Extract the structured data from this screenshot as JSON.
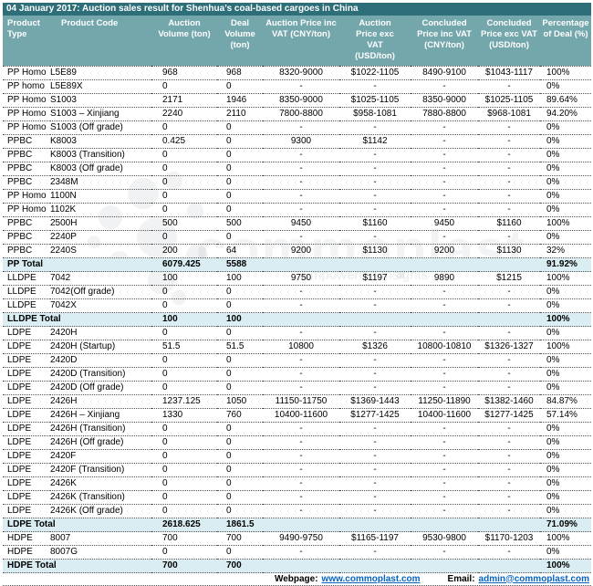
{
  "title": "04 January 2017: Auction sales result for Shenhua’s coal-based cargoes in China",
  "colors": {
    "title_bar": "#2e6e79",
    "header_row": "#74a7ac",
    "total_row_highlight": "#d9edf2",
    "hyperlink": "#0563c1"
  },
  "columns": [
    "Product Type",
    "Product Code",
    "Auction Volume (ton)",
    "Deal Volume (ton)",
    "Auction Price inc VAT (CNY/ton)",
    "Auction Price exc VAT (USD/ton)",
    "Concluded Price inc VAT (CNY/ton)",
    "Concluded Price exc VAT (USD/ton)",
    "Percentage of Deal (%)"
  ],
  "rows": [
    {
      "kind": "data",
      "type": "PP Homo",
      "code": "L5E89",
      "av": "968",
      "dv": "968",
      "apci": "8320-9000",
      "apce": "$1022-1105",
      "cpci": "8490-9100",
      "cpce": "$1043-1117",
      "pct": "100%"
    },
    {
      "kind": "data",
      "type": "PP homo",
      "code": "L5E89X",
      "av": "0",
      "dv": "0",
      "apci": "-",
      "apce": "-",
      "cpci": "-",
      "cpce": "-",
      "pct": "0%"
    },
    {
      "kind": "data",
      "type": "PP Homo",
      "code": "S1003",
      "av": "2171",
      "dv": "1946",
      "apci": "8350-9000",
      "apce": "$1025-1105",
      "cpci": "8350-9000",
      "cpce": "$1025-1105",
      "pct": "89.64%"
    },
    {
      "kind": "data",
      "type": "PP Homo",
      "code": "S1003 – Xinjiang",
      "av": "2240",
      "dv": "2110",
      "apci": "7800-8800",
      "apce": "$958-1081",
      "cpci": "7880-8800",
      "cpce": "$968-1081",
      "pct": "94.20%"
    },
    {
      "kind": "data",
      "type": "PP Homo",
      "code": "S1003 (Off grade)",
      "av": "0",
      "dv": "0",
      "apci": "-",
      "apce": "-",
      "cpci": "-",
      "cpce": "-",
      "pct": "0%"
    },
    {
      "kind": "data",
      "type": "PPBC",
      "code": "K8003",
      "av": "0.425",
      "dv": "0",
      "apci": "9300",
      "apce": "$1142",
      "cpci": "-",
      "cpce": "-",
      "pct": "0%"
    },
    {
      "kind": "data",
      "type": "PPBC",
      "code": "K8003 (Transition)",
      "av": "0",
      "dv": "0",
      "apci": "-",
      "apce": "-",
      "cpci": "-",
      "cpce": "-",
      "pct": "0%"
    },
    {
      "kind": "data",
      "type": "PPBC",
      "code": "K8003 (Off grade)",
      "av": "0",
      "dv": "0",
      "apci": "-",
      "apce": "-",
      "cpci": "-",
      "cpce": "-",
      "pct": "0%"
    },
    {
      "kind": "data",
      "type": "PPBC",
      "code": "2348M",
      "av": "0",
      "dv": "0",
      "apci": "-",
      "apce": "-",
      "cpci": "-",
      "cpce": "-",
      "pct": "0%"
    },
    {
      "kind": "data",
      "type": "PP Homo",
      "code": "1100N",
      "av": "0",
      "dv": "0",
      "apci": "-",
      "apce": "-",
      "cpci": "-",
      "cpce": "-",
      "pct": "0%"
    },
    {
      "kind": "data",
      "type": "PP Homo",
      "code": "1102K",
      "av": "0",
      "dv": "0",
      "apci": "-",
      "apce": "-",
      "cpci": "-",
      "cpce": "-",
      "pct": "0%"
    },
    {
      "kind": "data",
      "type": "PPBC",
      "code": "2500H",
      "av": "500",
      "dv": "500",
      "apci": "9450",
      "apce": "$1160",
      "cpci": "9450",
      "cpce": "$1160",
      "pct": "100%"
    },
    {
      "kind": "data",
      "type": "PPBC",
      "code": "2240P",
      "av": "0",
      "dv": "0",
      "apci": "-",
      "apce": "-",
      "cpci": "-",
      "cpce": "-",
      "pct": "0%"
    },
    {
      "kind": "data",
      "type": "PPBC",
      "code": "2240S",
      "av": "200",
      "dv": "64",
      "apci": "9200",
      "apce": "$1130",
      "cpci": "9200",
      "cpce": "$1130",
      "pct": "32%"
    },
    {
      "kind": "total",
      "type": "PP Total",
      "code": "",
      "av": "6079.425",
      "dv": "5588",
      "apci": "",
      "apce": "",
      "cpci": "",
      "cpce": "",
      "pct": "91.92%"
    },
    {
      "kind": "data",
      "type": "LLDPE",
      "code": "7042",
      "av": "100",
      "dv": "100",
      "apci": "9750",
      "apce": "$1197",
      "cpci": "9890",
      "cpce": "$1215",
      "pct": "100%"
    },
    {
      "kind": "data",
      "type": "LLDPE",
      "code": "7042(Off grade)",
      "av": "0",
      "dv": "0",
      "apci": "-",
      "apce": "-",
      "cpci": "-",
      "cpce": "-",
      "pct": "0%"
    },
    {
      "kind": "data",
      "type": "LLDPE",
      "code": "7042X",
      "av": "0",
      "dv": "0",
      "apci": "-",
      "apce": "-",
      "cpci": "-",
      "cpce": "-",
      "pct": "0%"
    },
    {
      "kind": "total",
      "type": "LLDPE Total",
      "code": "",
      "av": "100",
      "dv": "100",
      "apci": "",
      "apce": "",
      "cpci": "",
      "cpce": "",
      "pct": "100%"
    },
    {
      "kind": "data",
      "type": "LDPE",
      "code": "2420H",
      "av": "0",
      "dv": "0",
      "apci": "-",
      "apce": "-",
      "cpci": "-",
      "cpce": "-",
      "pct": "0%"
    },
    {
      "kind": "data",
      "type": "LDPE",
      "code": "2420H (Startup)",
      "av": "51.5",
      "dv": "51.5",
      "apci": "10800",
      "apce": "$1326",
      "cpci": "10800-10810",
      "cpce": "$1326-1327",
      "pct": "100%"
    },
    {
      "kind": "data",
      "type": "LDPE",
      "code": "2420D",
      "av": "0",
      "dv": "0",
      "apci": "-",
      "apce": "-",
      "cpci": "-",
      "cpce": "-",
      "pct": "0%"
    },
    {
      "kind": "data",
      "type": "LDPE",
      "code": "2420D (Transition)",
      "av": "0",
      "dv": "0",
      "apci": "-",
      "apce": "-",
      "cpci": "-",
      "cpce": "-",
      "pct": "0%"
    },
    {
      "kind": "data",
      "type": "LDPE",
      "code": "2420D (Off grade)",
      "av": "0",
      "dv": "0",
      "apci": "-",
      "apce": "-",
      "cpci": "-",
      "cpce": "-",
      "pct": "0%"
    },
    {
      "kind": "data",
      "type": "LDPE",
      "code": "2426H",
      "av": "1237.125",
      "dv": "1050",
      "apci": "11150-11750",
      "apce": "$1369-1443",
      "cpci": "11250-11890",
      "cpce": "$1382-1460",
      "pct": "84.87%"
    },
    {
      "kind": "data",
      "type": "LDPE",
      "code": "2426H – Xinjiang",
      "av": "1330",
      "dv": "760",
      "apci": "10400-11600",
      "apce": "$1277-1425",
      "cpci": "10400-11600",
      "cpce": "$1277-1425",
      "pct": "57.14%"
    },
    {
      "kind": "data",
      "type": "LDPE",
      "code": "2426H (Transition)",
      "av": "0",
      "dv": "0",
      "apci": "-",
      "apce": "-",
      "cpci": "-",
      "cpce": "-",
      "pct": "0%"
    },
    {
      "kind": "data",
      "type": "LDPE",
      "code": "2426H (Off grade)",
      "av": "0",
      "dv": "0",
      "apci": "-",
      "apce": "-",
      "cpci": "-",
      "cpce": "-",
      "pct": "0%"
    },
    {
      "kind": "data",
      "type": "LDPE",
      "code": "2420F",
      "av": "0",
      "dv": "0",
      "apci": "-",
      "apce": "-",
      "cpci": "-",
      "cpce": "-",
      "pct": "0%"
    },
    {
      "kind": "data",
      "type": "LDPE",
      "code": "2420F (Transition)",
      "av": "0",
      "dv": "0",
      "apci": "-",
      "apce": "-",
      "cpci": "-",
      "cpce": "-",
      "pct": "0%"
    },
    {
      "kind": "data",
      "type": "LDPE",
      "code": "2426K",
      "av": "0",
      "dv": "0",
      "apci": "-",
      "apce": "-",
      "cpci": "-",
      "cpce": "-",
      "pct": "0%"
    },
    {
      "kind": "data",
      "type": "LDPE",
      "code": "2426K (Transition)",
      "av": "0",
      "dv": "0",
      "apci": "-",
      "apce": "-",
      "cpci": "-",
      "cpce": "-",
      "pct": "0%"
    },
    {
      "kind": "data",
      "type": "LDPE",
      "code": "2426K (Off grade)",
      "av": "0",
      "dv": "0",
      "apci": "-",
      "apce": "-",
      "cpci": "-",
      "cpce": "-",
      "pct": "0%"
    },
    {
      "kind": "total",
      "type": "LDPE Total",
      "code": "",
      "av": "2618.625",
      "dv": "1861.5",
      "apci": "",
      "apce": "",
      "cpci": "",
      "cpce": "",
      "pct": "71.09%"
    },
    {
      "kind": "data",
      "type": "HDPE",
      "code": "8007",
      "av": "700",
      "dv": "700",
      "apci": "9490-9750",
      "apce": "$1165-1197",
      "cpci": "9530-9800",
      "cpce": "$1170-1203",
      "pct": "100%"
    },
    {
      "kind": "data",
      "type": "HDPE",
      "code": "8007G",
      "av": "0",
      "dv": "0",
      "apci": "-",
      "apce": "-",
      "cpci": "-",
      "cpce": "-",
      "pct": "0%"
    },
    {
      "kind": "total",
      "type": "HDPE Total",
      "code": "",
      "av": "700",
      "dv": "700",
      "apci": "",
      "apce": "",
      "cpci": "",
      "cpce": "",
      "pct": "100%"
    }
  ],
  "footer": {
    "webpage_label": "Webpage:",
    "webpage_link": "www.commoplast.com",
    "email_label": "Email:",
    "email_link": "admin@commoplast.com"
  },
  "watermark": {
    "text": "commoplast",
    "tagline": "Empowering Insights"
  }
}
